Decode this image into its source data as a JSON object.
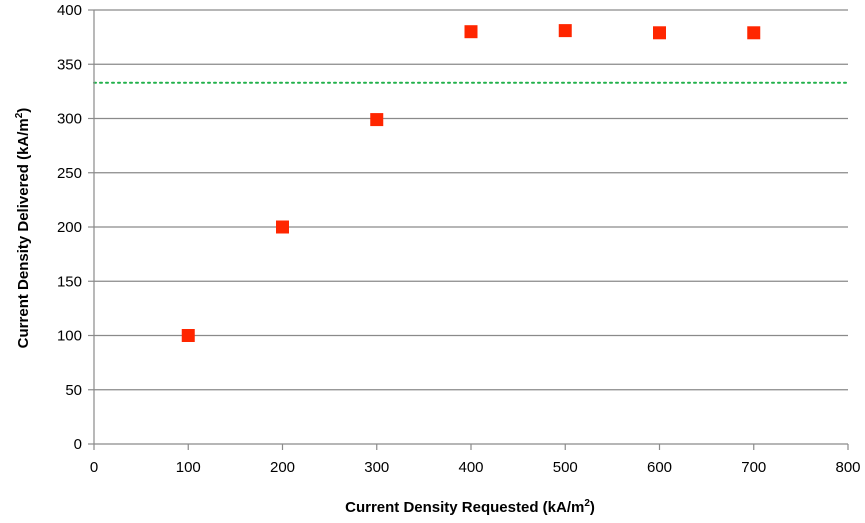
{
  "chart_data": {
    "type": "scatter",
    "title": "",
    "xlabel": "Current Density Requested (kA/m",
    "xlabel_sup": "2",
    "xlabel_tail": ")",
    "ylabel": "Current Density Delivered (kA/m",
    "ylabel_sup": "2",
    "ylabel_tail": ")",
    "xlim": [
      0,
      800
    ],
    "ylim": [
      0,
      400
    ],
    "x_ticks": [
      "0",
      "100",
      "200",
      "300",
      "400",
      "500",
      "600",
      "700",
      "800"
    ],
    "y_ticks": [
      "0",
      "50",
      "100",
      "150",
      "200",
      "250",
      "300",
      "350",
      "400"
    ],
    "grid": "horizontal",
    "legend": "none",
    "series": [
      {
        "marker": "square",
        "color": "#ff2600",
        "x": [
          100,
          200,
          300,
          400,
          500,
          600,
          700
        ],
        "y": [
          100,
          200,
          299,
          380,
          381,
          379,
          379
        ]
      }
    ],
    "reference_line": {
      "orientation": "horizontal",
      "y": 333,
      "style": "dotted",
      "color": "#22b14c"
    }
  }
}
